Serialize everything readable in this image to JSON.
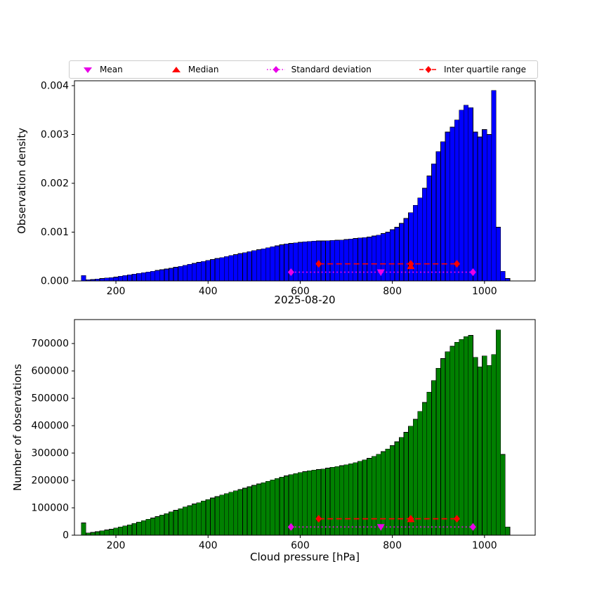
{
  "legend": {
    "items": [
      {
        "label": "Mean",
        "marker": "triangle-down",
        "color": "#e800e8"
      },
      {
        "label": "Median",
        "marker": "triangle-up",
        "color": "#ff0000"
      },
      {
        "label": "Standard deviation",
        "marker": "diamond-dotted-line",
        "color": "#e800e8"
      },
      {
        "label": "Inter quartile range",
        "marker": "diamond-dashed-line",
        "color": "#ff0000"
      }
    ]
  },
  "chart_data": [
    {
      "id": "density",
      "type": "bar",
      "title": "",
      "xlabel": "2025-08-20",
      "ylabel": "Observation density",
      "bar_color": "#0000ff",
      "edge_color": "#000000",
      "bin_width": 10,
      "xlim": [
        110,
        1110
      ],
      "ylim": [
        0,
        0.0041
      ],
      "xticks": [
        200,
        400,
        600,
        800,
        1000
      ],
      "yticks": [
        0,
        0.001,
        0.002,
        0.003,
        0.004
      ],
      "ytick_labels": [
        "0.000",
        "0.001",
        "0.002",
        "0.003",
        "0.004"
      ],
      "centers": [
        130,
        140,
        150,
        160,
        170,
        180,
        190,
        200,
        210,
        220,
        230,
        240,
        250,
        260,
        270,
        280,
        290,
        300,
        310,
        320,
        330,
        340,
        350,
        360,
        370,
        380,
        390,
        400,
        410,
        420,
        430,
        440,
        450,
        460,
        470,
        480,
        490,
        500,
        510,
        520,
        530,
        540,
        550,
        560,
        570,
        580,
        590,
        600,
        610,
        620,
        630,
        640,
        650,
        660,
        670,
        680,
        690,
        700,
        710,
        720,
        730,
        740,
        750,
        760,
        770,
        780,
        790,
        800,
        810,
        820,
        830,
        840,
        850,
        860,
        870,
        880,
        890,
        900,
        910,
        920,
        930,
        940,
        950,
        960,
        970,
        980,
        990,
        1000,
        1010,
        1020,
        1030,
        1040,
        1050
      ],
      "values": [
        0.00011,
        2.5e-05,
        3e-05,
        4e-05,
        5e-05,
        6e-05,
        7e-05,
        8e-05,
        9.5e-05,
        0.00011,
        0.000125,
        0.00014,
        0.000155,
        0.00017,
        0.000185,
        0.0002,
        0.000215,
        0.00023,
        0.000245,
        0.00026,
        0.00028,
        0.0003,
        0.00032,
        0.00034,
        0.00036,
        0.00038,
        0.0004,
        0.00042,
        0.00044,
        0.00046,
        0.00048,
        0.0005,
        0.00052,
        0.00054,
        0.00056,
        0.00058,
        0.0006,
        0.00062,
        0.00064,
        0.00066,
        0.00068,
        0.0007,
        0.00072,
        0.00074,
        0.00076,
        0.00077,
        0.00078,
        0.00079,
        0.0008,
        0.00081,
        0.000815,
        0.00082,
        0.00082,
        0.000825,
        0.00083,
        0.000835,
        0.00084,
        0.00085,
        0.00086,
        0.00087,
        0.00088,
        0.00089,
        0.0009,
        0.00092,
        0.00094,
        0.00097,
        0.001,
        0.00105,
        0.0011,
        0.00118,
        0.00128,
        0.0014,
        0.00155,
        0.0017,
        0.0019,
        0.00215,
        0.0024,
        0.00265,
        0.00285,
        0.00305,
        0.00315,
        0.0033,
        0.0035,
        0.0036,
        0.00355,
        0.00305,
        0.00295,
        0.0031,
        0.003,
        0.0039,
        0.0011,
        0.0002,
        5e-05
      ],
      "stats": {
        "mean_x": 775,
        "mean_y": 0.00018,
        "median_x": 840,
        "median_y": 0.0003,
        "std_x": [
          580,
          975
        ],
        "std_y": 0.00018,
        "iqr_x": [
          640,
          940
        ],
        "iqr_y": 0.00035
      }
    },
    {
      "id": "counts",
      "type": "bar",
      "title": "",
      "xlabel": "Cloud pressure [hPa]",
      "ylabel": "Number of observations",
      "bar_color": "#008000",
      "edge_color": "#000000",
      "bin_width": 10,
      "xlim": [
        110,
        1110
      ],
      "ylim": [
        0,
        787500
      ],
      "xticks": [
        200,
        400,
        600,
        800,
        1000
      ],
      "yticks": [
        0,
        100000,
        200000,
        300000,
        400000,
        500000,
        600000,
        700000
      ],
      "ytick_labels": [
        "0",
        "100000",
        "200000",
        "300000",
        "400000",
        "500000",
        "600000",
        "700000"
      ],
      "centers": [
        130,
        140,
        150,
        160,
        170,
        180,
        190,
        200,
        210,
        220,
        230,
        240,
        250,
        260,
        270,
        280,
        290,
        300,
        310,
        320,
        330,
        340,
        350,
        360,
        370,
        380,
        390,
        400,
        410,
        420,
        430,
        440,
        450,
        460,
        470,
        480,
        490,
        500,
        510,
        520,
        530,
        540,
        550,
        560,
        570,
        580,
        590,
        600,
        610,
        620,
        630,
        640,
        650,
        660,
        670,
        680,
        690,
        700,
        710,
        720,
        730,
        740,
        750,
        760,
        770,
        780,
        790,
        800,
        810,
        820,
        830,
        840,
        850,
        860,
        870,
        880,
        890,
        900,
        910,
        920,
        930,
        940,
        950,
        960,
        970,
        980,
        990,
        1000,
        1010,
        1020,
        1030,
        1040,
        1050
      ],
      "values": [
        45000,
        8000,
        10000,
        13000,
        16000,
        19000,
        22000,
        26000,
        30000,
        34000,
        38000,
        43000,
        48000,
        53000,
        58000,
        63000,
        68000,
        74000,
        79000,
        85000,
        91000,
        97000,
        103000,
        108000,
        114000,
        119000,
        125000,
        130000,
        136000,
        141000,
        147000,
        152000,
        157000,
        162000,
        167000,
        172000,
        177000,
        182000,
        187000,
        192000,
        197000,
        202000,
        207000,
        212000,
        217000,
        221000,
        225000,
        229000,
        232000,
        235000,
        238000,
        240000,
        242000,
        245000,
        248000,
        251000,
        254000,
        257000,
        261000,
        265000,
        270000,
        275000,
        281000,
        288000,
        296000,
        305000,
        315000,
        327000,
        341000,
        357000,
        376000,
        398000,
        423000,
        452000,
        485000,
        523000,
        565000,
        610000,
        645000,
        670000,
        690000,
        705000,
        715000,
        725000,
        730000,
        650000,
        615000,
        655000,
        620000,
        660000,
        750000,
        295000,
        30000
      ],
      "stats": {
        "mean_x": 775,
        "mean_y": 30000,
        "median_x": 840,
        "median_y": 58000,
        "std_x": [
          580,
          975
        ],
        "std_y": 30000,
        "iqr_x": [
          640,
          940
        ],
        "iqr_y": 60000
      }
    }
  ]
}
